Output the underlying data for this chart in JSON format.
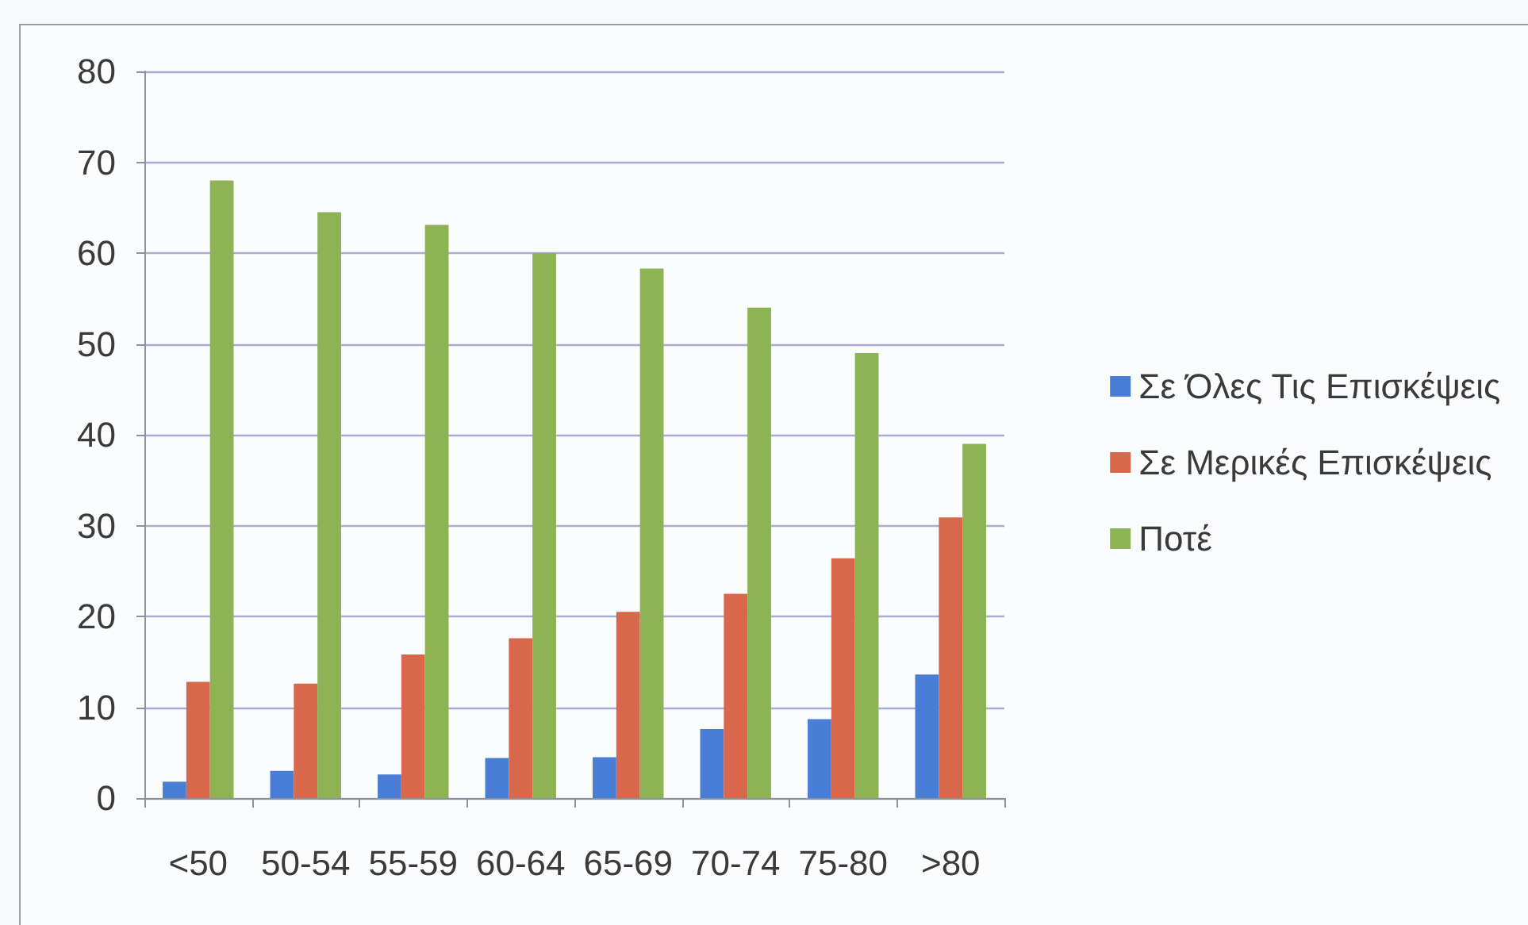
{
  "chart_data": {
    "type": "bar",
    "categories": [
      "<50",
      "50-54",
      "55-59",
      "60-64",
      "65-69",
      "70-74",
      "75-80",
      ">80"
    ],
    "series": [
      {
        "name": "Σε Όλες Τις Επισκέψεις",
        "color": "#4a7ed6",
        "values": [
          1.8,
          3.0,
          2.6,
          4.4,
          4.5,
          7.6,
          8.7,
          13.6
        ]
      },
      {
        "name": "Σε Μερικές Επισκέψεις",
        "color": "#d9674c",
        "values": [
          12.8,
          12.6,
          15.8,
          17.6,
          20.5,
          22.5,
          26.4,
          30.9
        ]
      },
      {
        "name": "Ποτέ",
        "color": "#8db354",
        "values": [
          68.0,
          64.5,
          63.1,
          60.0,
          58.3,
          54.0,
          49.0,
          39.0
        ]
      }
    ],
    "ylim": [
      0,
      80
    ],
    "yticks": [
      0,
      10,
      20,
      30,
      40,
      50,
      60,
      70,
      80
    ],
    "grid": "y",
    "legend": "right"
  }
}
